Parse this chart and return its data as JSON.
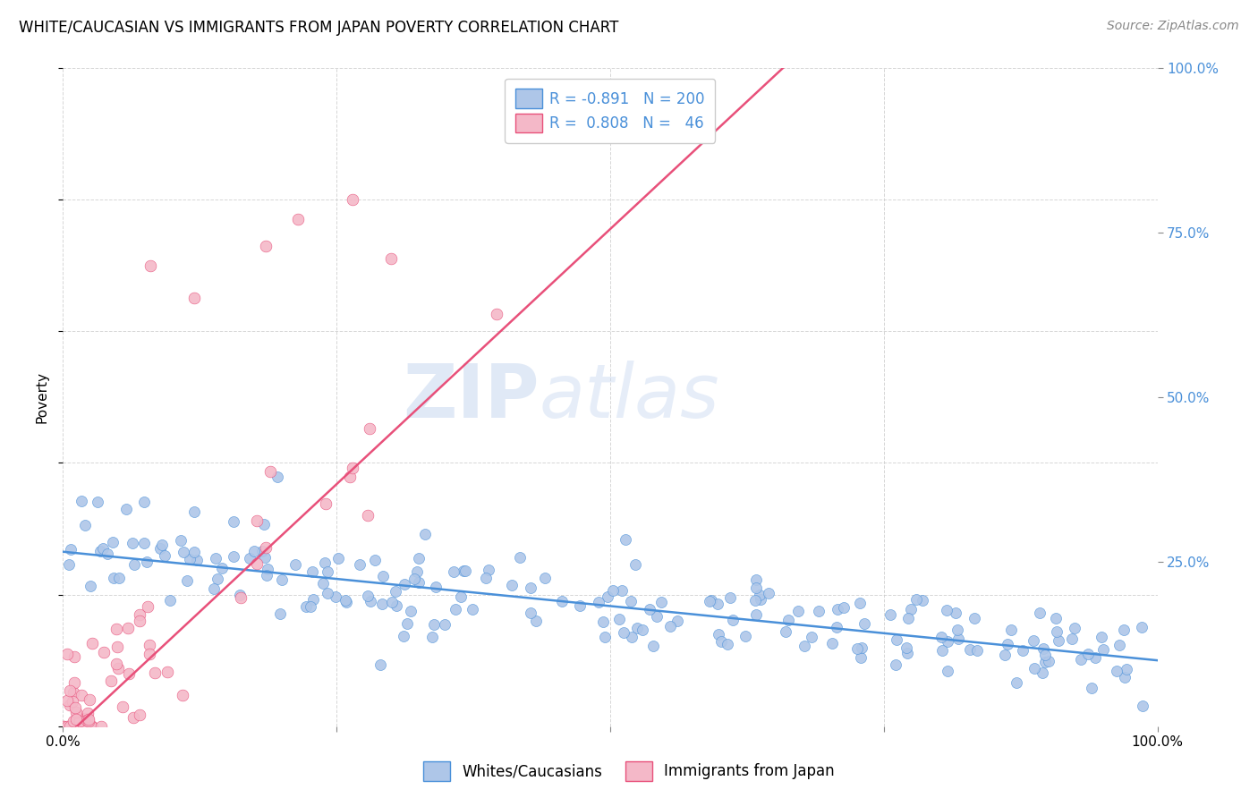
{
  "title": "WHITE/CAUCASIAN VS IMMIGRANTS FROM JAPAN POVERTY CORRELATION CHART",
  "source": "Source: ZipAtlas.com",
  "ylabel": "Poverty",
  "watermark_zip": "ZIP",
  "watermark_atlas": "atlas",
  "blue_R": -0.891,
  "blue_N": 200,
  "pink_R": 0.808,
  "pink_N": 46,
  "blue_color": "#aec6e8",
  "pink_color": "#f4b8c8",
  "blue_line_color": "#4a90d9",
  "pink_line_color": "#e8507a",
  "background_color": "#ffffff",
  "grid_color": "#cccccc",
  "blue_slope": -0.165,
  "blue_intercept": 0.265,
  "blue_noise": 0.038,
  "pink_slope": 1.55,
  "pink_intercept": -0.02,
  "pink_noise": 0.06,
  "seed": 42
}
